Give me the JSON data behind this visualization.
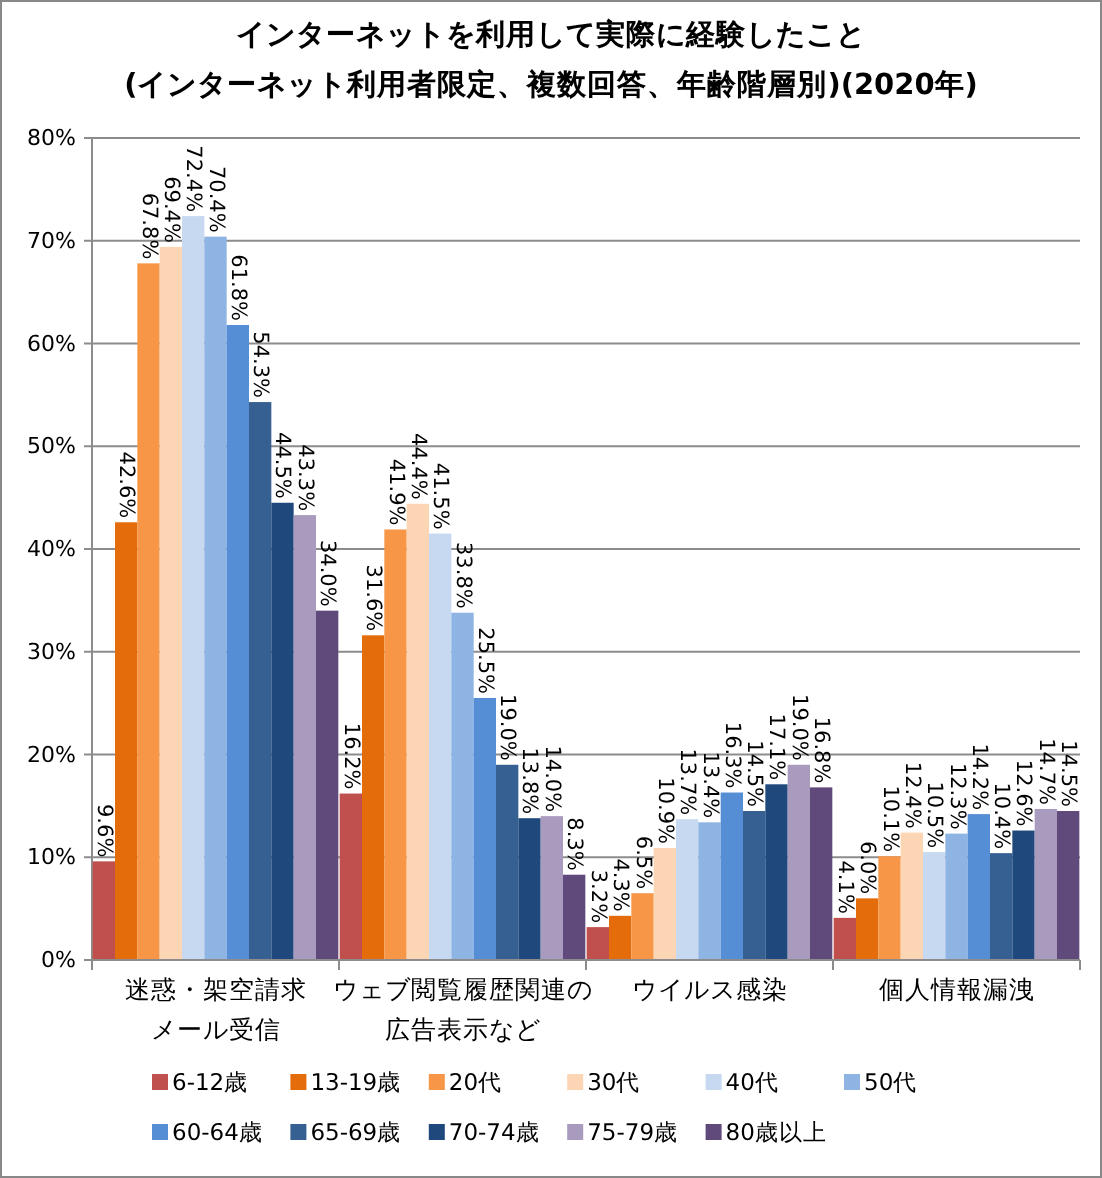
{
  "chart_data": {
    "type": "bar",
    "title": "インターネットを利用して実際に経験したこと",
    "subtitle": "(インターネット利用者限定、複数回答、年齢階層別)(2020年)",
    "categories": [
      "迷惑・架空請求メール受信",
      "ウェブ閲覧履歴関連の広告表示など",
      "ウイルス感染",
      "個人情報漏洩"
    ],
    "series": [
      {
        "name": "6-12歳",
        "color": "#c0504d",
        "values": [
          9.6,
          16.2,
          3.2,
          4.1
        ],
        "value_labels": [
          "9.6%",
          "16.2%",
          "3.2%",
          "4.1%"
        ]
      },
      {
        "name": "13-19歳",
        "color": "#e46c0a",
        "values": [
          42.6,
          31.6,
          4.3,
          6.0
        ],
        "value_labels": [
          "42.6%",
          "31.6%",
          "4.3%",
          "6.0%"
        ]
      },
      {
        "name": "20代",
        "color": "#f79646",
        "values": [
          67.8,
          41.9,
          6.5,
          10.1
        ],
        "value_labels": [
          "67.8%",
          "41.9%",
          "6.5%",
          "10.1%"
        ]
      },
      {
        "name": "30代",
        "color": "#fcd5b5",
        "values": [
          69.4,
          44.4,
          10.9,
          12.4
        ],
        "value_labels": [
          "69.4%",
          "44.4%",
          "10.9%",
          "12.4%"
        ]
      },
      {
        "name": "40代",
        "color": "#c6d9f1",
        "values": [
          72.4,
          41.5,
          13.7,
          10.5
        ],
        "value_labels": [
          "72.4%",
          "41.5%",
          "13.7%",
          "10.5%"
        ]
      },
      {
        "name": "50代",
        "color": "#8eb4e3",
        "values": [
          70.4,
          33.8,
          13.4,
          12.3
        ],
        "value_labels": [
          "70.4%",
          "33.8%",
          "13.4%",
          "12.3%"
        ]
      },
      {
        "name": "60-64歳",
        "color": "#558ed5",
        "values": [
          61.8,
          25.5,
          16.3,
          14.2
        ],
        "value_labels": [
          "61.8%",
          "25.5%",
          "16.3%",
          "14.2%"
        ]
      },
      {
        "name": "65-69歳",
        "color": "#376092",
        "values": [
          54.3,
          19.0,
          14.5,
          10.4
        ],
        "value_labels": [
          "54.3%",
          "19.0%",
          "14.5%",
          "10.4%"
        ]
      },
      {
        "name": "70-74歳",
        "color": "#1f497d",
        "values": [
          44.5,
          13.8,
          17.1,
          12.6
        ],
        "value_labels": [
          "44.5%",
          "13.8%",
          "17.1%",
          "12.6%"
        ]
      },
      {
        "name": "75-79歳",
        "color": "#a99bbd",
        "values": [
          43.3,
          14.0,
          19.0,
          14.7
        ],
        "value_labels": [
          "43.3%",
          "14.0%",
          "19.0%",
          "14.7%"
        ]
      },
      {
        "name": "80歳以上",
        "color": "#604a7b",
        "values": [
          34.0,
          8.3,
          16.8,
          14.5
        ],
        "value_labels": [
          "34.0%",
          "8.3%",
          "16.8%",
          "14.5%"
        ]
      }
    ],
    "ylim": [
      0,
      80
    ],
    "yticks": [
      {
        "value": 0,
        "label": "0%"
      },
      {
        "value": 10,
        "label": "10%"
      },
      {
        "value": 20,
        "label": "20%"
      },
      {
        "value": 30,
        "label": "30%"
      },
      {
        "value": 40,
        "label": "40%"
      },
      {
        "value": 50,
        "label": "50%"
      },
      {
        "value": 60,
        "label": "60%"
      },
      {
        "value": 70,
        "label": "70%"
      },
      {
        "value": 80,
        "label": "80%"
      }
    ],
    "grid": "y",
    "legend": "bottom"
  }
}
